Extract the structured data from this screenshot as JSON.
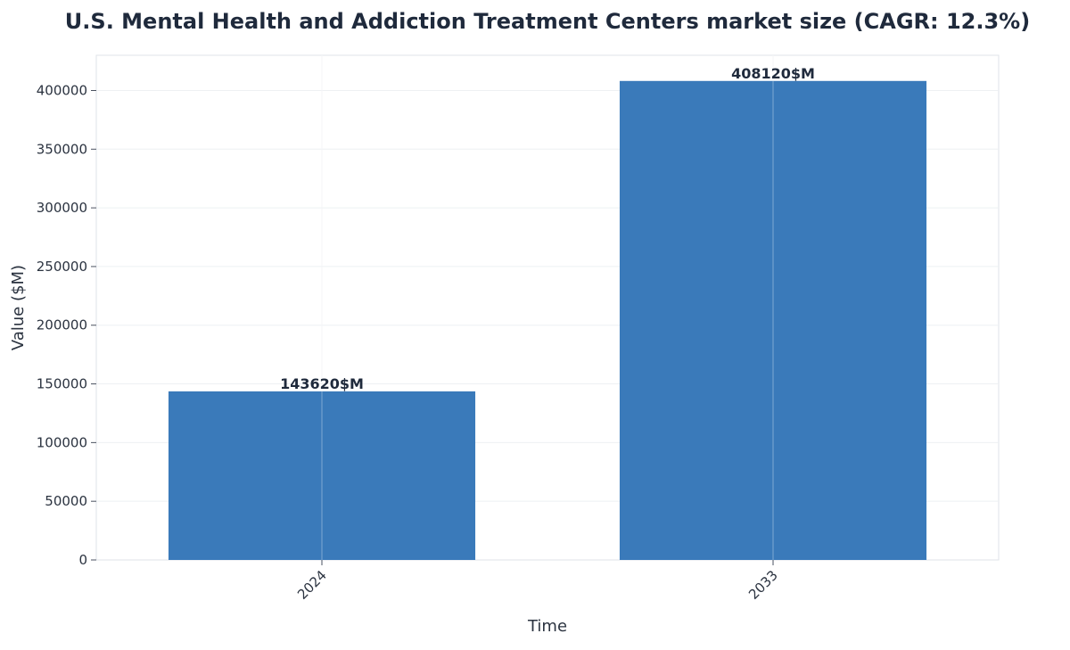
{
  "chart_data": {
    "type": "bar",
    "title": "U.S. Mental Health and Addiction Treatment Centers market size (CAGR: 12.3%)",
    "xlabel": "Time",
    "ylabel": "Value ($M)",
    "categories": [
      "2024",
      "2033"
    ],
    "values": [
      143620,
      408120
    ],
    "value_labels": [
      "143620$M",
      "408120$M"
    ],
    "ylim": [
      0,
      430000
    ],
    "yticks": [
      0,
      50000,
      100000,
      150000,
      200000,
      250000,
      300000,
      350000,
      400000
    ],
    "ytick_labels": [
      "0",
      "50000",
      "100000",
      "150000",
      "200000",
      "250000",
      "300000",
      "350000",
      "400000"
    ],
    "grid": true,
    "legend": "none",
    "bar_color": "#3a7aba",
    "tick_label_rotation": "45°"
  }
}
